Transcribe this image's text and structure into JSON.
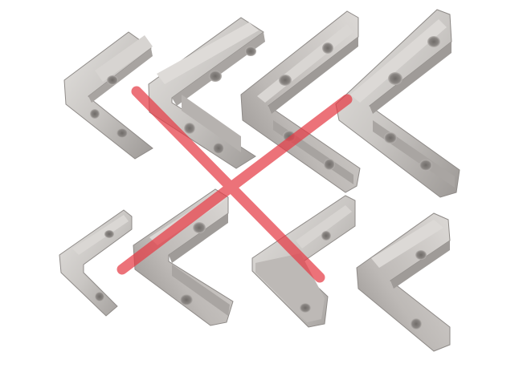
{
  "image": {
    "subject": "angle-brackets-product-photo",
    "background_color": "#ffffff",
    "metal_color": "#c9c6c3",
    "metal_shadow_color": "#8f8b88",
    "overlay_cross_color": "#e63c46"
  },
  "brackets": [
    {
      "name": "bracket-top-1"
    },
    {
      "name": "bracket-top-2"
    },
    {
      "name": "bracket-top-3"
    },
    {
      "name": "bracket-top-4"
    },
    {
      "name": "bracket-bottom-1"
    },
    {
      "name": "bracket-bottom-2"
    },
    {
      "name": "bracket-bottom-3"
    },
    {
      "name": "bracket-bottom-4"
    }
  ]
}
